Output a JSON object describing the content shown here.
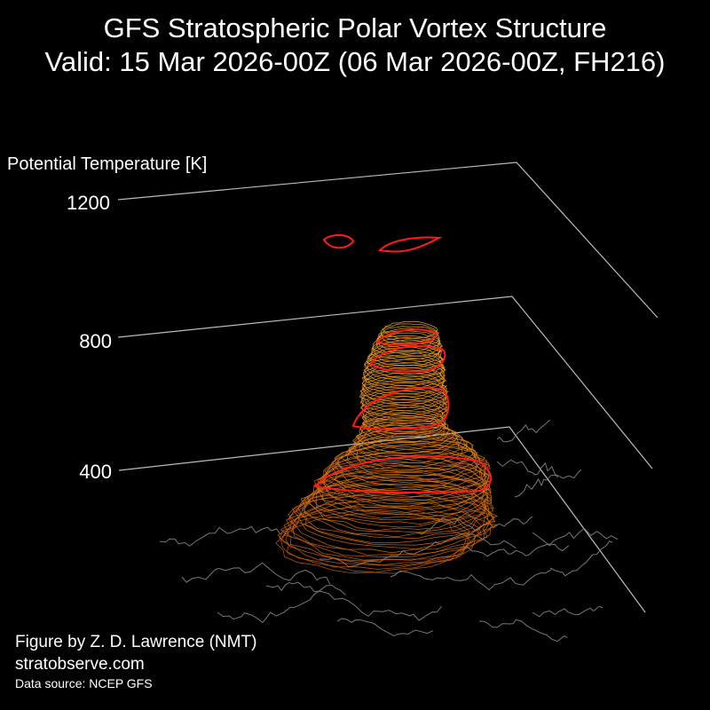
{
  "header": {
    "title": "GFS Stratospheric Polar Vortex Structure",
    "subtitle": "Valid: 15 Mar 2026-00Z  (06 Mar 2026-00Z, FH216)"
  },
  "footer": {
    "credit": "Figure by Z. D. Lawrence (NMT)",
    "website": "stratobserve.com",
    "source": "Data source: NCEP GFS"
  },
  "chart_data": {
    "type": "3d-isosurface",
    "title": "GFS Stratospheric Polar Vortex Structure",
    "subtitle": "Valid: 15 Mar 2026-00Z  (06 Mar 2026-00Z, FH216)",
    "zlabel": "Potential Temperature [K]",
    "zticks": [
      400,
      800,
      1200
    ],
    "surface_color": "#ff9a1a",
    "contour_color": "#ff1a1a",
    "basemap_color": "#777777",
    "axis_color": "#bbbbbb"
  }
}
